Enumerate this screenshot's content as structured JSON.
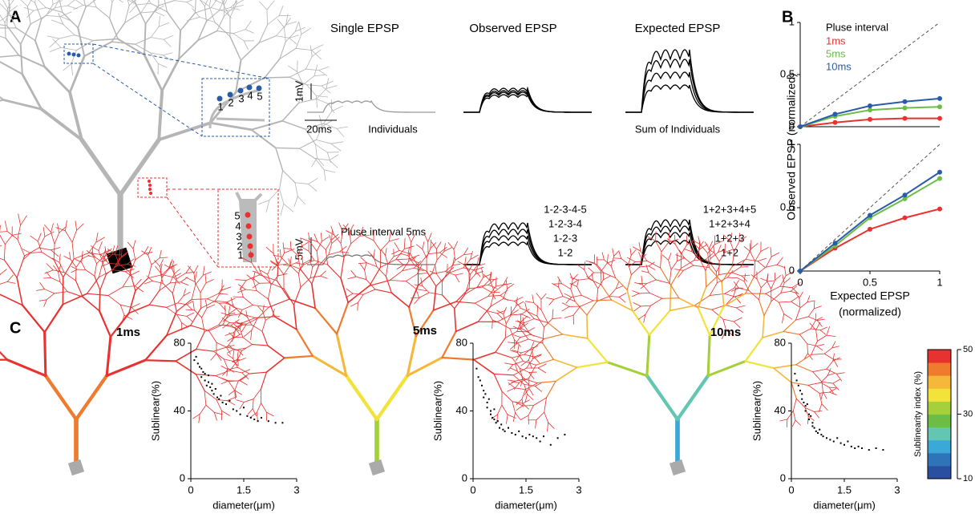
{
  "panel_labels": [
    "A",
    "B",
    "C"
  ],
  "panel_a": {
    "headers": [
      "Single EPSP",
      "Observed EPSP",
      "Expected EPSP"
    ],
    "scale_v1": "1mV",
    "scale_h": "20ms",
    "scale_v2": "5mV",
    "individuals": "Individuals",
    "sum_of_individuals": "Sum of Individuals",
    "interval": "Pluse interval 5ms",
    "observed_labels": [
      "1-2-3-4-5",
      "1-2-3-4",
      "1-2-3",
      "1-2"
    ],
    "expected_labels": [
      "1+2+3+4+5",
      "1+2+3+4",
      "1+2+3",
      "1+2"
    ],
    "spine_labels": [
      "1",
      "2",
      "3",
      "4",
      "5"
    ],
    "shaft_labels": [
      "5",
      "4",
      "3",
      "2",
      "1"
    ]
  },
  "chart_data": [
    {
      "type": "line",
      "legend_title": "Pluse interval",
      "x": [
        0,
        0.25,
        0.5,
        0.75,
        1
      ],
      "xlim": [
        0,
        1
      ],
      "ylim": [
        0,
        1
      ],
      "yticks": [
        0,
        0.5,
        1
      ],
      "series": [
        {
          "name": "1ms",
          "color": "#e8322f",
          "values": [
            0,
            0.04,
            0.07,
            0.08,
            0.08
          ]
        },
        {
          "name": "5ms",
          "color": "#6cbd45",
          "values": [
            0,
            0.1,
            0.16,
            0.18,
            0.19
          ]
        },
        {
          "name": "10ms",
          "color": "#2a5ba8",
          "values": [
            0,
            0.12,
            0.2,
            0.24,
            0.27
          ]
        }
      ]
    },
    {
      "type": "line",
      "y_label": "Observed EPSP (normalized)",
      "x_label": [
        "Expected EPSP",
        "(normalized)"
      ],
      "x": [
        0,
        0.25,
        0.5,
        0.75,
        1
      ],
      "xlim": [
        0,
        1
      ],
      "xticks": [
        0,
        0.5,
        1
      ],
      "ylim": [
        0,
        1
      ],
      "yticks": [
        0,
        0.5,
        1
      ],
      "series": [
        {
          "name": "1ms",
          "color": "#e8322f",
          "values": [
            0,
            0.18,
            0.33,
            0.42,
            0.49
          ]
        },
        {
          "name": "5ms",
          "color": "#6cbd45",
          "values": [
            0,
            0.2,
            0.42,
            0.57,
            0.73
          ]
        },
        {
          "name": "10ms",
          "color": "#2a5ba8",
          "values": [
            0,
            0.22,
            0.44,
            0.6,
            0.78
          ]
        }
      ]
    },
    {
      "type": "scatter",
      "title": "1ms",
      "x_label": "diameter(μm)",
      "y_label": "Sublinear(%)",
      "xlim": [
        0,
        3
      ],
      "xticks": [
        0,
        1.5,
        3
      ],
      "ylim": [
        0,
        80
      ],
      "yticks": [
        0,
        40,
        80
      ],
      "color": "#000000",
      "x": [
        0.1,
        0.15,
        0.2,
        0.25,
        0.3,
        0.3,
        0.35,
        0.4,
        0.4,
        0.45,
        0.5,
        0.5,
        0.55,
        0.6,
        0.6,
        0.65,
        0.7,
        0.75,
        0.8,
        0.85,
        0.9,
        1.0,
        1.1,
        1.2,
        1.3,
        1.4,
        1.5,
        1.6,
        1.7,
        1.8,
        1.9,
        2.0,
        2.2,
        2.4,
        2.6
      ],
      "values": [
        70,
        72,
        68,
        66,
        65,
        60,
        63,
        58,
        62,
        55,
        57,
        61,
        54,
        56,
        52,
        50,
        53,
        48,
        47,
        49,
        45,
        44,
        46,
        41,
        40,
        38,
        42,
        37,
        36,
        35,
        34,
        36,
        34,
        33,
        33
      ]
    },
    {
      "type": "scatter",
      "title": "5ms",
      "x_label": "diameter(μm)",
      "y_label": "Sublinear(%)",
      "xlim": [
        0,
        3
      ],
      "xticks": [
        0,
        1.5,
        3
      ],
      "ylim": [
        0,
        80
      ],
      "yticks": [
        0,
        40,
        80
      ],
      "color": "#000000",
      "x": [
        0.1,
        0.15,
        0.2,
        0.25,
        0.3,
        0.3,
        0.35,
        0.4,
        0.4,
        0.45,
        0.5,
        0.5,
        0.55,
        0.6,
        0.6,
        0.65,
        0.7,
        0.75,
        0.8,
        0.85,
        0.9,
        1.0,
        1.1,
        1.2,
        1.3,
        1.4,
        1.5,
        1.6,
        1.7,
        1.8,
        1.9,
        2.0,
        2.2,
        2.4,
        2.6
      ],
      "values": [
        65,
        60,
        58,
        55,
        52,
        48,
        50,
        45,
        42,
        47,
        40,
        38,
        36,
        41,
        35,
        33,
        34,
        30,
        32,
        29,
        28,
        30,
        27,
        26,
        28,
        25,
        24,
        26,
        25,
        24,
        22,
        25,
        20,
        24,
        26
      ]
    },
    {
      "type": "scatter",
      "title": "10ms",
      "x_label": "diameter(μm)",
      "y_label": "Sublinear(%)",
      "xlim": [
        0,
        3
      ],
      "xticks": [
        0,
        1.5,
        3
      ],
      "ylim": [
        0,
        80
      ],
      "yticks": [
        0,
        40,
        80
      ],
      "color": "#000000",
      "x": [
        0.1,
        0.15,
        0.2,
        0.25,
        0.3,
        0.3,
        0.35,
        0.4,
        0.4,
        0.45,
        0.5,
        0.5,
        0.55,
        0.6,
        0.6,
        0.65,
        0.7,
        0.75,
        0.8,
        0.85,
        0.9,
        1.0,
        1.1,
        1.2,
        1.3,
        1.4,
        1.5,
        1.6,
        1.7,
        1.8,
        1.9,
        2.0,
        2.2,
        2.4,
        2.6
      ],
      "values": [
        62,
        58,
        55,
        52,
        50,
        47,
        45,
        43,
        40,
        44,
        38,
        35,
        37,
        33,
        31,
        30,
        28,
        27,
        29,
        26,
        25,
        24,
        23,
        22,
        24,
        21,
        20,
        22,
        19,
        18,
        19,
        18,
        17,
        18,
        17
      ]
    }
  ],
  "colorbar": {
    "label": "Sublinearity index (%)",
    "lim": [
      10,
      50
    ],
    "ticks": [
      10,
      30,
      50
    ]
  }
}
